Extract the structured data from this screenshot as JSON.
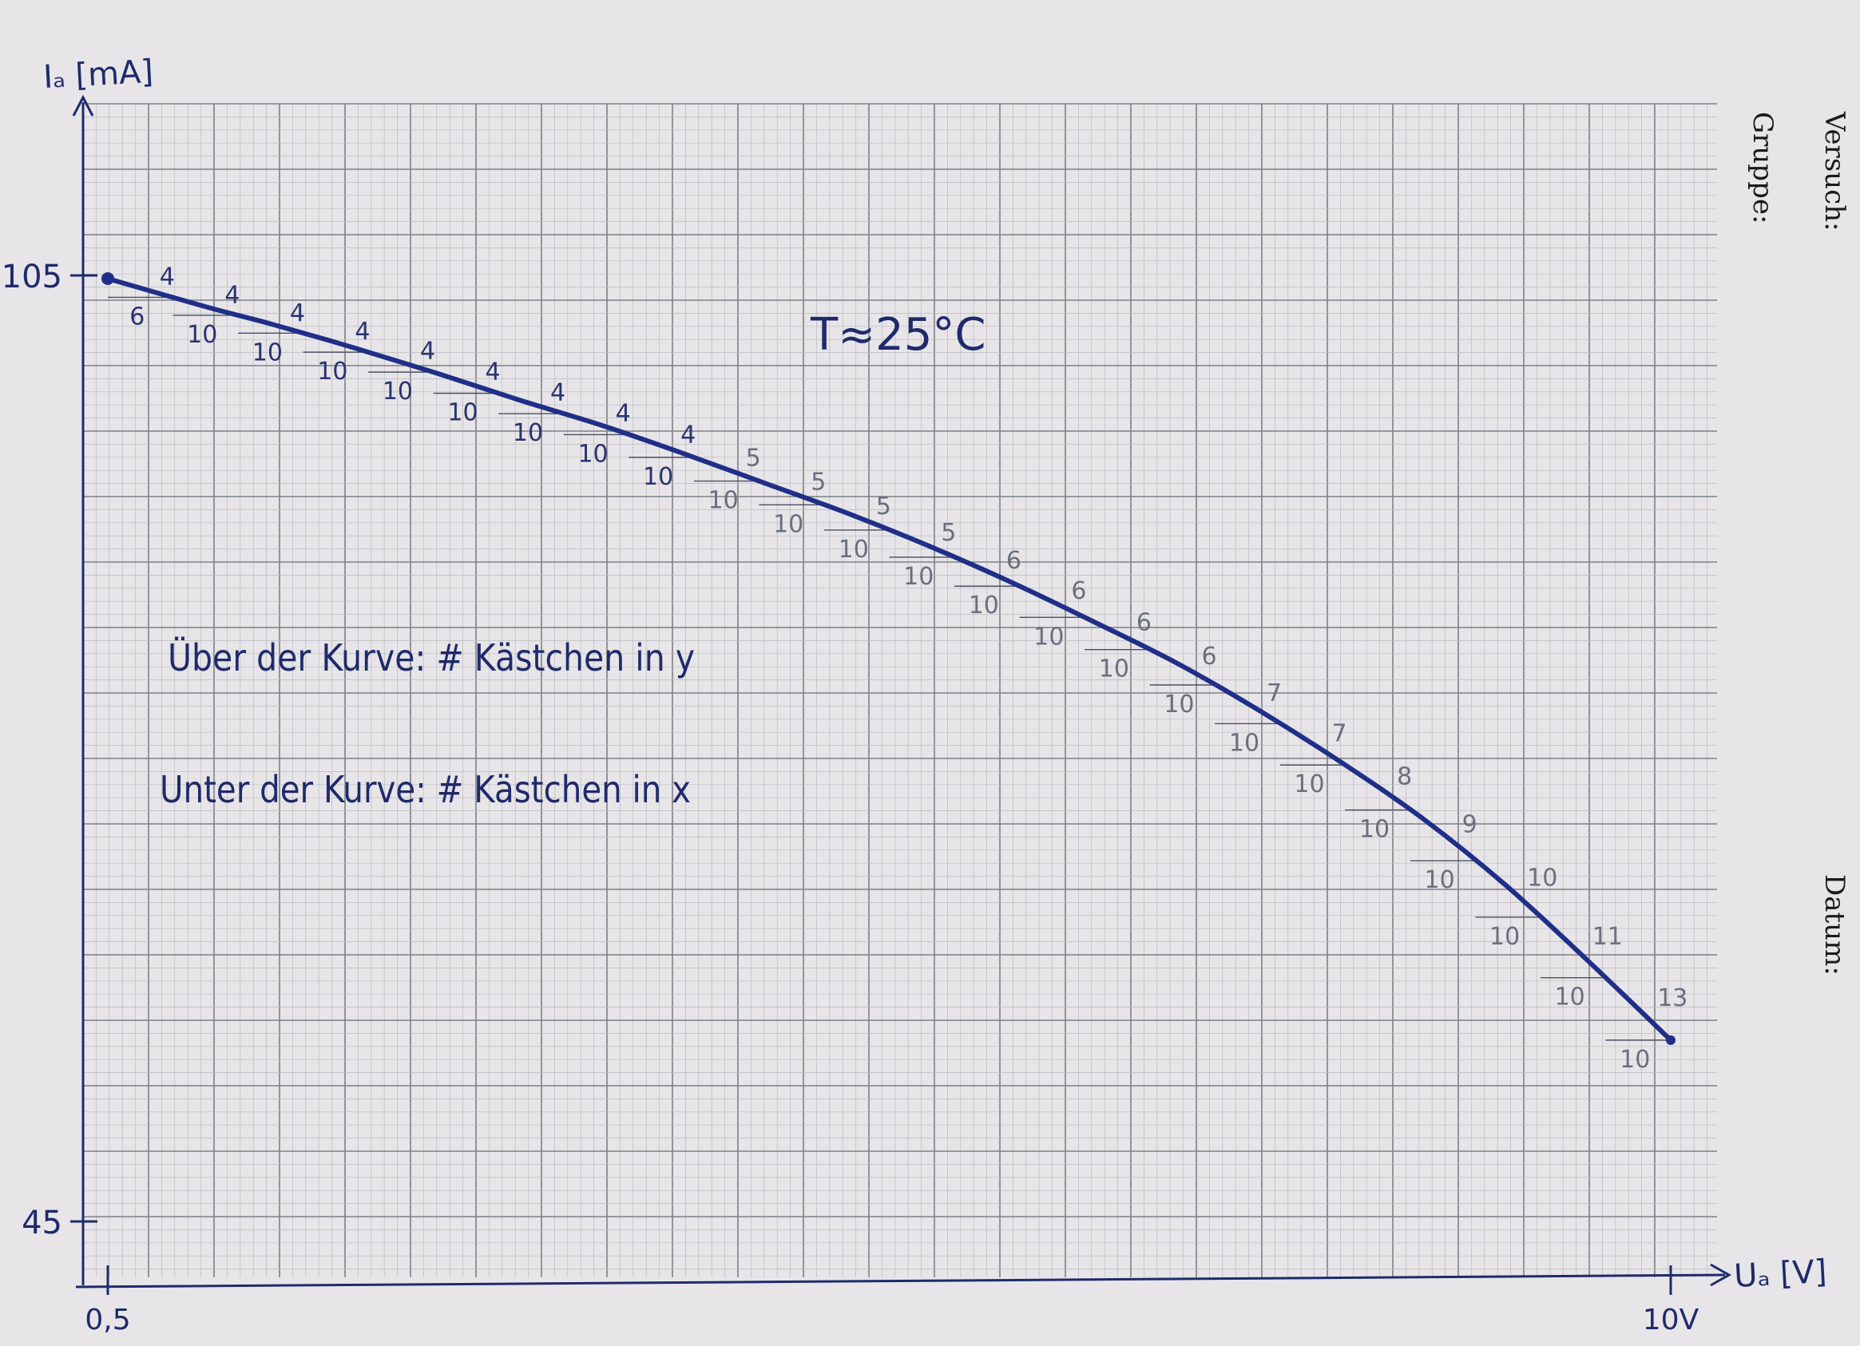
{
  "page": {
    "side_labels": {
      "versuch": "Versuch:",
      "gruppe": "Gruppe:",
      "datum": "Datum:"
    }
  },
  "chart_data": {
    "type": "line",
    "title": "",
    "ylabel": "Iₐ [mA]",
    "xlabel": "Uₐ [V]",
    "xlim": [
      0.5,
      10
    ],
    "ylim": [
      45,
      105
    ],
    "x_ticks": [
      {
        "value": 0.5,
        "label": "0,5"
      },
      {
        "value": 10,
        "label": "10V"
      }
    ],
    "y_ticks": [
      {
        "value": 105,
        "label": "105"
      },
      {
        "value": 45,
        "label": "45"
      }
    ],
    "annotations": {
      "temperature": "T≈25°C",
      "note_above": "Über der Kurve: # Kästchen in y",
      "note_below": "Unter der Kurve: # Kästchen in x"
    },
    "series": [
      {
        "color": "#1f2f88",
        "x": [
          0.5,
          1.1,
          1.5,
          2.0,
          2.5,
          3.0,
          3.5,
          4.0,
          4.5,
          5.0,
          5.5,
          6.0,
          6.5,
          7.0,
          7.5,
          8.0,
          8.5,
          9.0,
          9.5,
          10.0
        ],
        "y": [
          104.8,
          103.0,
          101.9,
          100.4,
          98.8,
          97.1,
          95.5,
          93.7,
          91.8,
          89.9,
          87.8,
          85.5,
          83.0,
          80.4,
          77.4,
          74.1,
          70.5,
          66.3,
          61.5,
          56.5
        ]
      }
    ],
    "step_labels": [
      {
        "dy": "4",
        "dx": "6"
      },
      {
        "dy": "4",
        "dx": "10"
      },
      {
        "dy": "4",
        "dx": "10"
      },
      {
        "dy": "4",
        "dx": "10"
      },
      {
        "dy": "4",
        "dx": "10"
      },
      {
        "dy": "4",
        "dx": "10"
      },
      {
        "dy": "4",
        "dx": "10"
      },
      {
        "dy": "4",
        "dx": "10"
      },
      {
        "dy": "4",
        "dx": "10"
      },
      {
        "dy": "5",
        "dx": "10"
      },
      {
        "dy": "5",
        "dx": "10"
      },
      {
        "dy": "5",
        "dx": "10"
      },
      {
        "dy": "5",
        "dx": "10"
      },
      {
        "dy": "6",
        "dx": "10"
      },
      {
        "dy": "6",
        "dx": "10"
      },
      {
        "dy": "6",
        "dx": "10"
      },
      {
        "dy": "6",
        "dx": "10"
      },
      {
        "dy": "7",
        "dx": "10"
      },
      {
        "dy": "7",
        "dx": "10"
      },
      {
        "dy": "8",
        "dx": "10"
      },
      {
        "dy": "9",
        "dx": "10"
      },
      {
        "dy": "10",
        "dx": "10"
      },
      {
        "dy": "11",
        "dx": "10"
      },
      {
        "dy": "13",
        "dx": "10"
      }
    ],
    "grid": true
  }
}
